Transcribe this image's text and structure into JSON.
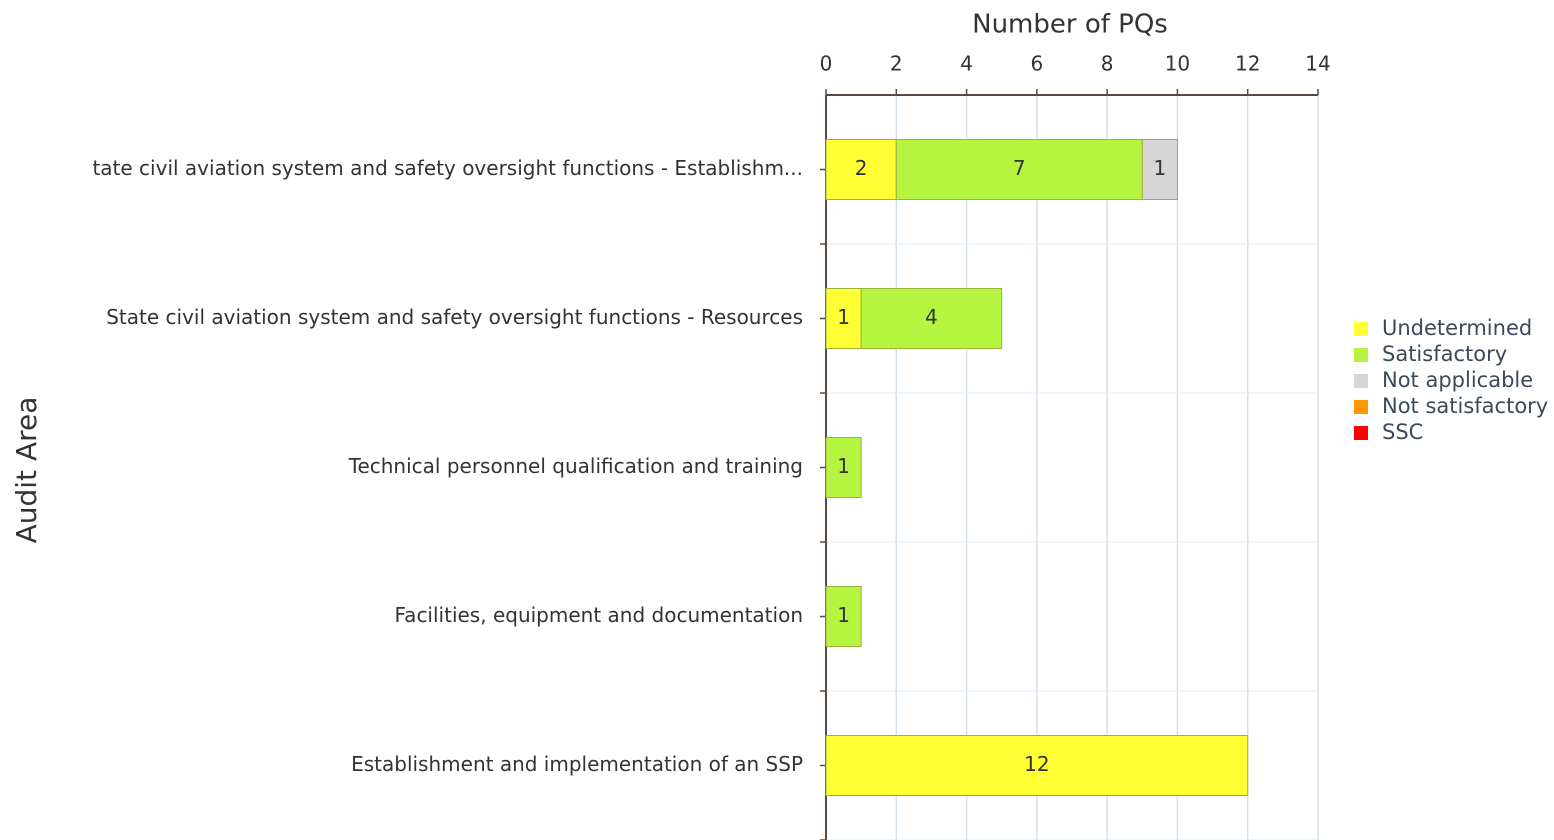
{
  "chart_data": {
    "type": "stacked_bar_horizontal",
    "xlabel": "Number of PQs",
    "ylabel": "Audit Area",
    "categories": [
      "tate civil aviation system and safety oversight functions - Establishm...",
      "State civil aviation system and safety oversight functions - Resources",
      "Technical personnel qualification and training",
      "Facilities, equipment and documentation",
      "Establishment and implementation of an SSP"
    ],
    "series": [
      {
        "name": "Undetermined",
        "color": "#ffff33",
        "values": [
          2,
          1,
          0,
          0,
          12
        ]
      },
      {
        "name": "Satisfactory",
        "color": "#b5f53f",
        "values": [
          7,
          4,
          1,
          1,
          0
        ]
      },
      {
        "name": "Not applicable",
        "color": "#d6d6d6",
        "values": [
          1,
          0,
          0,
          0,
          0
        ]
      },
      {
        "name": "Not satisfactory",
        "color": "#ff9900",
        "values": [
          0,
          0,
          0,
          0,
          0
        ]
      },
      {
        "name": "SSC",
        "color": "#ff0000",
        "values": [
          0,
          0,
          0,
          0,
          0
        ]
      }
    ],
    "xlim": [
      0,
      14
    ],
    "xticks": [
      0,
      2,
      4,
      6,
      8,
      10,
      12,
      14
    ],
    "grid": true,
    "legend": "right"
  }
}
